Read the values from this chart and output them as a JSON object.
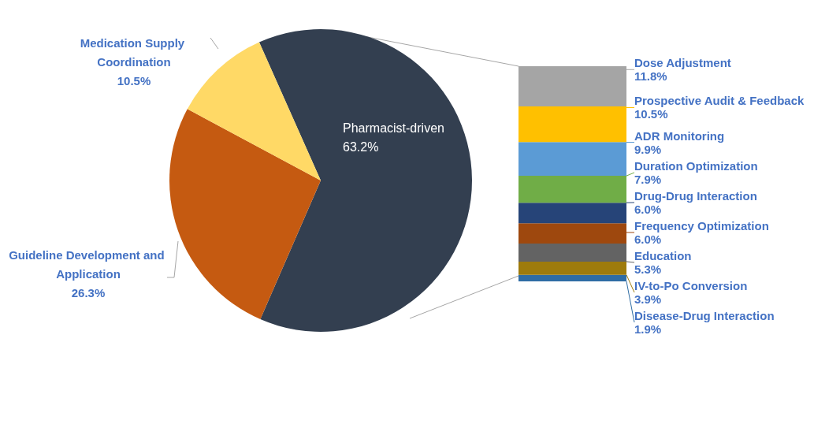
{
  "chart_data": [
    {
      "type": "pie",
      "categories": [
        "Pharmacist-driven",
        "Guideline Development and Application",
        "Medication Supply Coordination"
      ],
      "values": [
        63.2,
        26.3,
        10.5
      ],
      "colors": [
        "#333f50",
        "#c55a11",
        "#ffd966"
      ],
      "value_labels": [
        "63.2%",
        "26.3%",
        "10.5%"
      ]
    },
    {
      "type": "bar",
      "stacked": true,
      "categories": [
        null
      ],
      "series": [
        {
          "name": "Disease-Drug Interaction",
          "color": "#2e6ca4",
          "values": [
            1.9
          ],
          "value_labels": [
            "1.9%"
          ]
        },
        {
          "name": "IV-to-Po Conversion",
          "color": "#9e7b0c",
          "values": [
            3.9
          ],
          "value_labels": [
            "3.9%"
          ]
        },
        {
          "name": "Education",
          "color": "#636363",
          "values": [
            5.3
          ],
          "value_labels": [
            "5.3%"
          ]
        },
        {
          "name": "Frequency Optimization",
          "color": "#9e480e",
          "values": [
            6.0
          ],
          "value_labels": [
            "6.0%"
          ]
        },
        {
          "name": "Drug-Drug Interaction",
          "color": "#264478",
          "values": [
            6.0
          ],
          "value_labels": [
            "6.0%"
          ]
        },
        {
          "name": "Duration Optimization",
          "color": "#70ad47",
          "values": [
            7.9
          ],
          "value_labels": [
            "7.9%"
          ]
        },
        {
          "name": "ADR Monitoring",
          "color": "#5b9bd5",
          "values": [
            9.9
          ],
          "value_labels": [
            "9.9%"
          ]
        },
        {
          "name": "Prospective Audit & Feedback",
          "color": "#ffc000",
          "values": [
            10.5
          ],
          "value_labels": [
            "10.5%"
          ]
        },
        {
          "name": "Dose Adjustment",
          "color": "#a5a5a5",
          "values": [
            11.8
          ],
          "value_labels": [
            "11.8%"
          ]
        }
      ]
    }
  ]
}
